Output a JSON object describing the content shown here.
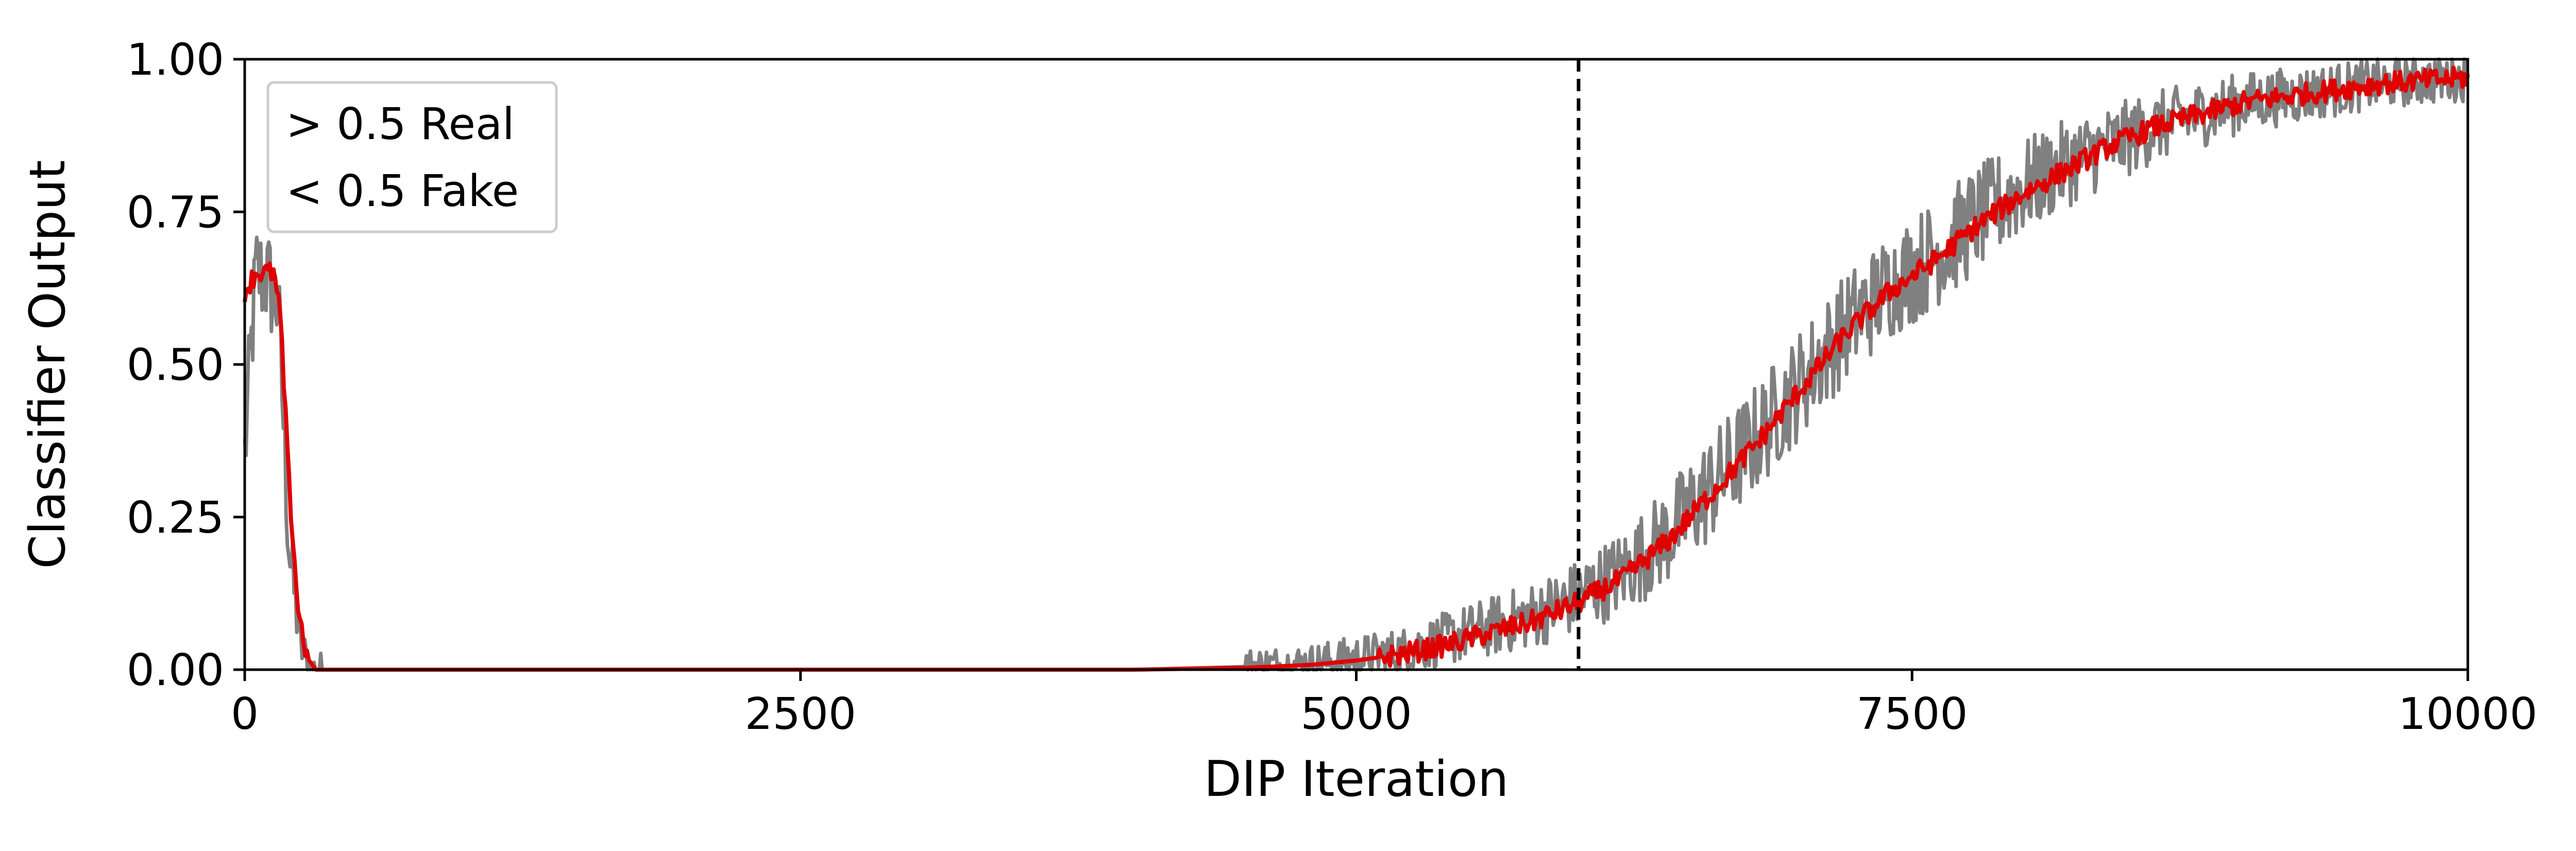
{
  "chart_data": {
    "type": "line",
    "xlabel": "DIP Iteration",
    "ylabel": "Classifier Output",
    "xlim": [
      0,
      10000
    ],
    "ylim": [
      0.0,
      1.0
    ],
    "x_ticks": [
      "0",
      "2500",
      "5000",
      "7500",
      "10000"
    ],
    "y_ticks": [
      "0.00",
      "0.25",
      "0.50",
      "0.75",
      "1.00"
    ],
    "legend": {
      "placement": "top-left",
      "entries": [
        "> 0.5 Real",
        "< 0.5 Fake"
      ]
    },
    "vline": {
      "x": 6000,
      "style": "dashed",
      "color": "#000000"
    },
    "grid": false,
    "series": [
      {
        "role": "raw",
        "color": "#808080",
        "noisy": true,
        "x": [
          0,
          50,
          100,
          150,
          200,
          250,
          300,
          400,
          1000,
          2000,
          3000,
          3500,
          4000,
          4500,
          4800,
          5000,
          5200,
          5400,
          5600,
          5800,
          6000,
          6200,
          6400,
          6600,
          6800,
          7000,
          7200,
          7400,
          7600,
          7800,
          8000,
          8200,
          8400,
          8600,
          8800,
          9000,
          9200,
          9400,
          9600,
          9800,
          10000
        ],
        "values": [
          0.35,
          0.65,
          0.64,
          0.6,
          0.2,
          0.04,
          0.0,
          0.0,
          0.0,
          0.0,
          0.0,
          0.0,
          0.0,
          0.005,
          0.01,
          0.02,
          0.03,
          0.05,
          0.07,
          0.09,
          0.12,
          0.16,
          0.22,
          0.3,
          0.38,
          0.47,
          0.56,
          0.63,
          0.68,
          0.74,
          0.79,
          0.83,
          0.86,
          0.89,
          0.91,
          0.93,
          0.94,
          0.95,
          0.96,
          0.965,
          0.97
        ]
      },
      {
        "role": "smoothed",
        "color": "#e00000",
        "noisy": false,
        "x": [
          0,
          50,
          100,
          130,
          160,
          200,
          240,
          280,
          320,
          1000,
          2000,
          3000,
          3500,
          4000,
          4500,
          4800,
          5000,
          5200,
          5400,
          5600,
          5800,
          6000,
          6200,
          6400,
          6600,
          6800,
          7000,
          7200,
          7400,
          7600,
          7800,
          8000,
          8200,
          8400,
          8600,
          8800,
          9000,
          9200,
          9400,
          9600,
          9800,
          10000
        ],
        "values": [
          0.62,
          0.65,
          0.65,
          0.65,
          0.58,
          0.3,
          0.1,
          0.02,
          0.0,
          0.0,
          0.0,
          0.0,
          0.0,
          0.0,
          0.003,
          0.008,
          0.015,
          0.025,
          0.04,
          0.06,
          0.08,
          0.11,
          0.15,
          0.21,
          0.29,
          0.37,
          0.46,
          0.55,
          0.62,
          0.67,
          0.73,
          0.78,
          0.82,
          0.86,
          0.89,
          0.91,
          0.93,
          0.94,
          0.95,
          0.96,
          0.965,
          0.97
        ]
      }
    ]
  }
}
